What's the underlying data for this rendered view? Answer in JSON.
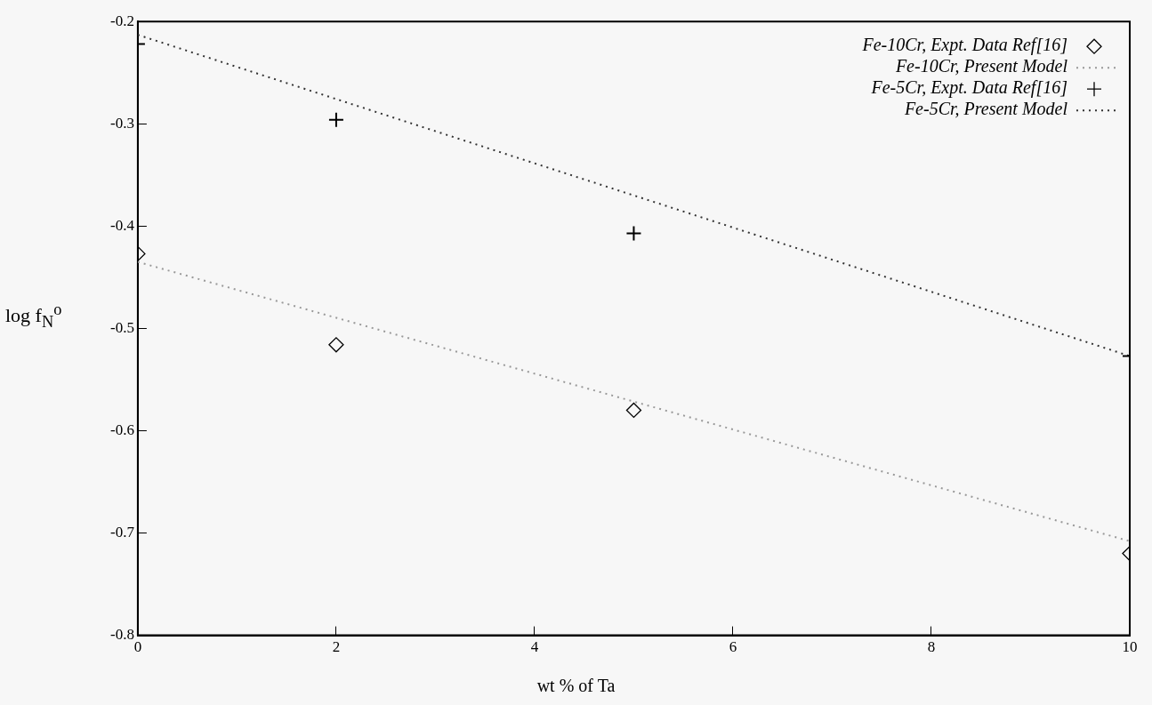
{
  "chart_data": {
    "type": "scatter",
    "xlabel": "wt % of Ta",
    "ylabel": "log f$_{N}$$^{o}$",
    "xlim": [
      0,
      10
    ],
    "xticks": [
      0,
      2,
      4,
      6,
      8,
      10
    ],
    "ylim": [
      -0.8,
      -0.2
    ],
    "yticks": [
      -0.8,
      -0.7,
      -0.6,
      -0.5,
      -0.4,
      -0.3,
      -0.2
    ],
    "grid": false,
    "legend": "top right",
    "series": [
      {
        "name": "Fe-10Cr, Expt. Data Ref[16]",
        "type": "scatter",
        "marker": "diamond",
        "color": "#000000",
        "x": [
          0,
          2,
          5,
          10
        ],
        "values": [
          -0.427,
          -0.516,
          -0.58,
          -0.72
        ]
      },
      {
        "name": "Fe-10Cr, Present Model",
        "type": "line",
        "marker": "none",
        "line_style": "dotted",
        "color": "#999999",
        "x": [
          0,
          10
        ],
        "values": [
          -0.435,
          -0.708
        ]
      },
      {
        "name": "Fe-5Cr, Expt. Data Ref[16]",
        "type": "scatter",
        "marker": "cross",
        "color": "#000000",
        "x": [
          0,
          2,
          5,
          10
        ],
        "values": [
          -0.222,
          -0.296,
          -0.407,
          -0.527
        ]
      },
      {
        "name": "Fe-5Cr, Present Model",
        "type": "line",
        "marker": "none",
        "line_style": "dotted",
        "color": "#333333",
        "x": [
          0,
          10
        ],
        "values": [
          -0.213,
          -0.527
        ]
      }
    ]
  }
}
